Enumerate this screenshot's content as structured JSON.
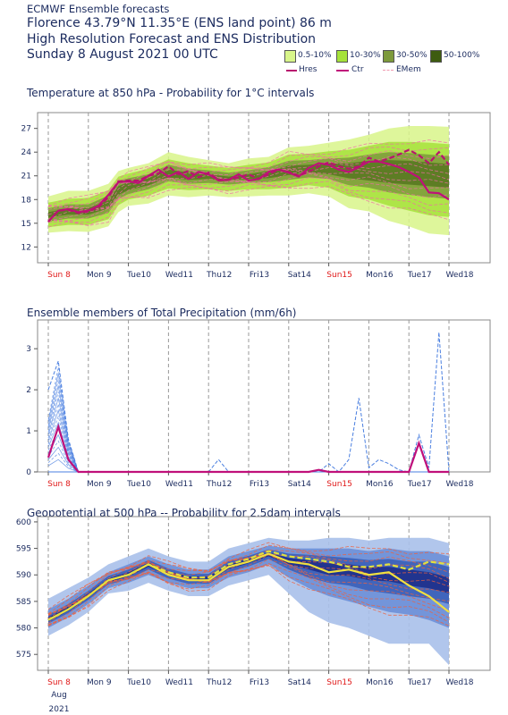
{
  "header": {
    "line1": "ECMWF Ensemble forecasts",
    "line2": "Florence 43.79°N 11.35°E (ENS land point) 86 m",
    "line3": "High Resolution Forecast and ENS Distribution",
    "line4": "Sunday  8 August 2021 00 UTC"
  },
  "legend": {
    "items": [
      {
        "label": "0.5-10%",
        "color": "#d8f58a"
      },
      {
        "label": "10-30%",
        "color": "#a6e23a"
      },
      {
        "label": "30-50%",
        "color": "#7d9a3c"
      },
      {
        "label": "50-100%",
        "color": "#3e5c10"
      }
    ],
    "lines": [
      {
        "label": "Hres",
        "color": "#b8146e",
        "style": "dashed"
      },
      {
        "label": "Ctr",
        "color": "#c0107a",
        "style": "solid"
      },
      {
        "label": "EMem",
        "color": "#f09ab0",
        "style": "dashed"
      }
    ]
  },
  "x_axis": {
    "ticks": [
      "Sun 8",
      "Mon 9",
      "Tue10",
      "Wed11",
      "Thu12",
      "Fri13",
      "Sat14",
      "Sun15",
      "Mon16",
      "Tue17",
      "Wed18"
    ],
    "red_ticks": [
      "Sun 8",
      "Sun15"
    ],
    "sublabel1": "Aug",
    "sublabel2": "2021"
  },
  "chart_data": [
    {
      "type": "area",
      "title": "Temperature at 850 hPa - Probability for 1°C intervals",
      "ylim": [
        10,
        29
      ],
      "yticks": [
        12,
        15,
        18,
        21,
        24,
        27
      ],
      "x_unit": "days from Sun 8 00 UTC",
      "series": [
        {
          "name": "Hres",
          "x": [
            0,
            0.25,
            0.5,
            0.75,
            1,
            1.25,
            1.5,
            1.75,
            2,
            2.25,
            2.5,
            2.75,
            3,
            3.25,
            3.5,
            3.75,
            4,
            4.25,
            4.5,
            4.75,
            5,
            5.25,
            5.5,
            5.75,
            6,
            6.25,
            6.5,
            6.75,
            7,
            7.25,
            7.5,
            7.75,
            8,
            8.25,
            8.5,
            8.75,
            9,
            9.25,
            9.5,
            9.75,
            10
          ],
          "values": [
            15.2,
            16.6,
            16.7,
            16.3,
            16.5,
            17.0,
            18.3,
            20.3,
            20.4,
            20.4,
            21.0,
            21.3,
            22.2,
            21.2,
            21.6,
            20.8,
            21.4,
            20.5,
            20.5,
            20.8,
            21.2,
            20.6,
            21.2,
            21.8,
            21.5,
            21.0,
            21.5,
            22.2,
            22.7,
            22.2,
            21.9,
            22.2,
            23.3,
            22.8,
            23.2,
            23.7,
            24.3,
            23.6,
            22.6,
            24.0,
            22.4
          ]
        },
        {
          "name": "Ctr",
          "x": [
            0,
            0.25,
            0.5,
            0.75,
            1,
            1.25,
            1.5,
            1.75,
            2,
            2.25,
            2.5,
            2.75,
            3,
            3.25,
            3.5,
            3.75,
            4,
            4.25,
            4.5,
            4.75,
            5,
            5.25,
            5.5,
            5.75,
            6,
            6.25,
            6.5,
            6.75,
            7,
            7.25,
            7.5,
            7.75,
            8,
            8.25,
            8.5,
            8.75,
            9,
            9.25,
            9.5,
            9.75,
            10
          ],
          "values": [
            15.2,
            16.6,
            16.8,
            16.4,
            16.6,
            17.2,
            18.6,
            20.2,
            20.3,
            20.1,
            21.0,
            21.8,
            20.9,
            21.5,
            20.6,
            21.5,
            21.2,
            20.4,
            20.5,
            21.2,
            20.4,
            20.6,
            21.5,
            21.8,
            21.4,
            20.9,
            22.0,
            22.6,
            22.4,
            21.8,
            21.5,
            22.1,
            22.8,
            22.8,
            22.5,
            22.1,
            21.5,
            20.8,
            18.9,
            18.8,
            18.0
          ]
        }
      ],
      "band_0_5_10": {
        "x": [
          0,
          0.5,
          1,
          1.5,
          1.75,
          2,
          2.5,
          3,
          3.5,
          4,
          4.5,
          5,
          5.5,
          6,
          6.5,
          7,
          7.5,
          8,
          8.5,
          9,
          9.5,
          10
        ],
        "upper": [
          18.4,
          19.1,
          19.1,
          20.0,
          21.6,
          22.0,
          22.6,
          24.0,
          23.4,
          23.0,
          22.6,
          23.2,
          23.4,
          24.6,
          24.8,
          25.2,
          25.6,
          26.2,
          27.0,
          27.3,
          27.3,
          27.2
        ],
        "lower": [
          13.8,
          14.0,
          13.9,
          14.6,
          16.4,
          17.2,
          17.5,
          18.5,
          18.3,
          18.5,
          18.3,
          18.4,
          18.5,
          18.5,
          18.8,
          18.4,
          16.9,
          16.5,
          15.3,
          14.6,
          13.7,
          13.5
        ]
      },
      "band_10_30": {
        "x": [
          0,
          0.5,
          1,
          1.5,
          1.75,
          2,
          2.5,
          3,
          3.5,
          4,
          4.5,
          5,
          5.5,
          6,
          6.5,
          7,
          7.5,
          8,
          8.5,
          9,
          9.5,
          10
        ],
        "upper": [
          17.6,
          18.1,
          18.2,
          19.2,
          20.9,
          21.3,
          21.9,
          23.1,
          22.6,
          22.3,
          22.0,
          22.4,
          22.7,
          23.7,
          23.8,
          24.1,
          24.3,
          24.8,
          25.3,
          25.3,
          25.2,
          25.0
        ],
        "lower": [
          14.5,
          14.8,
          14.8,
          15.5,
          17.3,
          18.0,
          18.5,
          19.4,
          19.2,
          19.3,
          19.1,
          19.3,
          19.3,
          19.5,
          19.8,
          19.5,
          18.4,
          18.0,
          17.2,
          16.6,
          16.0,
          15.8
        ]
      },
      "band_30_50": {
        "x": [
          0,
          0.5,
          1,
          1.5,
          1.75,
          2,
          2.5,
          3,
          3.5,
          4,
          4.5,
          5,
          5.5,
          6,
          6.5,
          7,
          7.5,
          8,
          8.5,
          9,
          9.5,
          10
        ],
        "upper": [
          16.9,
          17.4,
          17.4,
          18.5,
          20.3,
          20.7,
          21.2,
          22.4,
          21.9,
          21.7,
          21.4,
          21.7,
          22.1,
          22.9,
          23.0,
          23.2,
          23.3,
          23.7,
          24.0,
          23.9,
          23.7,
          23.5
        ],
        "lower": [
          15.2,
          15.6,
          15.6,
          16.3,
          18.1,
          18.7,
          19.3,
          20.3,
          20.0,
          20.1,
          19.9,
          20.1,
          20.2,
          20.5,
          20.8,
          20.6,
          19.8,
          19.5,
          18.9,
          18.6,
          18.3,
          18.1
        ]
      },
      "band_50_100": {
        "x": [
          0,
          0.5,
          1,
          1.5,
          1.75,
          2,
          2.5,
          3,
          3.5,
          4,
          4.5,
          5,
          5.5,
          6,
          6.5,
          7,
          7.5,
          8,
          8.5,
          9,
          9.5,
          10
        ],
        "upper": [
          16.4,
          16.9,
          16.9,
          17.9,
          19.7,
          20.2,
          20.7,
          21.8,
          21.4,
          21.2,
          20.9,
          21.2,
          21.6,
          22.3,
          22.4,
          22.6,
          22.6,
          22.9,
          23.0,
          22.9,
          22.7,
          22.5
        ],
        "lower": [
          15.7,
          16.1,
          16.1,
          16.9,
          18.6,
          19.2,
          19.8,
          20.8,
          20.5,
          20.6,
          20.4,
          20.6,
          20.7,
          21.1,
          21.4,
          21.2,
          20.7,
          20.4,
          20.1,
          19.9,
          19.7,
          19.5
        ]
      }
    },
    {
      "type": "line",
      "title": "Ensemble members of Total Precipitation (mm/6h)",
      "ylim": [
        0,
        3.7
      ],
      "yticks": [
        0,
        1,
        2,
        3
      ],
      "x_unit": "days from Sun 8 00 UTC",
      "series": [
        {
          "name": "Ctr",
          "x": [
            0,
            0.25,
            0.5,
            0.75,
            1,
            6.5,
            6.75,
            7,
            7.25,
            9,
            9.25,
            9.5,
            9.75,
            10
          ],
          "values": [
            0.35,
            1.1,
            0.3,
            0,
            0,
            0,
            0.05,
            0,
            0,
            0,
            0.7,
            0,
            0,
            0
          ]
        },
        {
          "name": "EMem",
          "x": [
            0,
            0.25,
            0.5,
            0.75,
            1,
            4,
            4.25,
            4.5,
            6.75,
            7,
            7.25,
            7.5,
            7.75,
            8,
            8.25,
            8.5,
            8.75,
            9,
            9.25,
            9.5,
            9.75,
            10
          ],
          "values": [
            2.0,
            2.7,
            0.8,
            0,
            0,
            0,
            0.3,
            0,
            0,
            0.2,
            0,
            0.3,
            1.8,
            0.1,
            0.3,
            0.2,
            0.05,
            0,
            0.9,
            0.1,
            3.4,
            0
          ]
        }
      ]
    },
    {
      "type": "area",
      "title": "Geopotential at 500 hPa -- Probability for 2.5dam intervals",
      "ylim": [
        572,
        601
      ],
      "yticks": [
        575,
        580,
        585,
        590,
        595,
        600
      ],
      "x_unit": "days from Sun 8 00 UTC",
      "series": [
        {
          "name": "Hres",
          "x": [
            0,
            0.5,
            1,
            1.5,
            2,
            2.5,
            3,
            3.5,
            4,
            4.5,
            5,
            5.5,
            6,
            6.5,
            7,
            7.5,
            8,
            8.5,
            9,
            9.5,
            10
          ],
          "values": [
            581.5,
            583.5,
            586.0,
            589.0,
            590.0,
            592.0,
            590.5,
            589.5,
            589.5,
            592.0,
            593.0,
            594.5,
            593.5,
            593.0,
            592.5,
            591.5,
            591.5,
            592.0,
            591.0,
            592.5,
            592.0
          ]
        },
        {
          "name": "Ctr",
          "x": [
            0,
            0.5,
            1,
            1.5,
            2,
            2.5,
            3,
            3.5,
            4,
            4.5,
            5,
            5.5,
            6,
            6.5,
            7,
            7.5,
            8,
            8.5,
            9,
            9.5,
            10
          ],
          "values": [
            581.5,
            583.5,
            586.0,
            589.0,
            590.0,
            592.0,
            590.0,
            589.0,
            589.0,
            591.5,
            592.5,
            594.0,
            592.5,
            592.0,
            590.5,
            591.0,
            590.0,
            590.5,
            588.0,
            586.0,
            583.0
          ]
        }
      ],
      "band_0_5_10": {
        "x": [
          0,
          0.5,
          1,
          1.5,
          2,
          2.5,
          3,
          3.5,
          4,
          4.5,
          5,
          5.5,
          6,
          6.5,
          7,
          7.5,
          8,
          8.5,
          9,
          9.5,
          10
        ],
        "upper": [
          585.5,
          587.5,
          589.5,
          592.0,
          593.5,
          595.0,
          593.5,
          592.5,
          592.5,
          595.0,
          596.0,
          597.0,
          596.5,
          596.5,
          597.0,
          597.0,
          596.5,
          597.0,
          597.0,
          597.0,
          596.0
        ],
        "lower": [
          578.5,
          580.5,
          583.0,
          586.5,
          587.0,
          588.5,
          587.0,
          586.0,
          586.0,
          588.0,
          589.0,
          590.0,
          586.5,
          583.0,
          581.0,
          580.0,
          578.5,
          577.0,
          577.0,
          577.0,
          573.0
        ]
      },
      "band_10_30": {
        "x": [
          0,
          0.5,
          1,
          1.5,
          2,
          2.5,
          3,
          3.5,
          4,
          4.5,
          5,
          5.5,
          6,
          6.5,
          7,
          7.5,
          8,
          8.5,
          9,
          9.5,
          10
        ],
        "upper": [
          583.5,
          585.5,
          588.0,
          590.5,
          592.0,
          593.5,
          592.0,
          591.0,
          591.0,
          593.5,
          594.5,
          595.5,
          595.0,
          595.0,
          595.0,
          595.0,
          594.5,
          595.0,
          594.5,
          594.5,
          593.5
        ],
        "lower": [
          580.0,
          582.0,
          584.5,
          587.5,
          588.5,
          590.0,
          588.5,
          587.5,
          587.5,
          589.5,
          590.5,
          592.0,
          589.5,
          587.5,
          586.0,
          585.0,
          584.0,
          583.0,
          582.5,
          581.5,
          580.0
        ]
      },
      "band_30_50": {
        "x": [
          0,
          0.5,
          1,
          1.5,
          2,
          2.5,
          3,
          3.5,
          4,
          4.5,
          5,
          5.5,
          6,
          6.5,
          7,
          7.5,
          8,
          8.5,
          9,
          9.5,
          10
        ],
        "upper": [
          582.5,
          584.5,
          587.0,
          589.8,
          591.0,
          592.8,
          591.2,
          590.2,
          590.2,
          592.6,
          593.6,
          594.8,
          594.0,
          593.8,
          593.5,
          593.2,
          592.8,
          593.0,
          592.5,
          592.5,
          591.5
        ],
        "lower": [
          580.8,
          582.8,
          585.3,
          588.2,
          589.2,
          591.0,
          589.3,
          588.3,
          588.3,
          590.5,
          591.6,
          593.0,
          591.0,
          589.5,
          588.5,
          588.0,
          587.0,
          586.5,
          586.0,
          585.5,
          584.5
        ]
      },
      "band_50_100": {
        "x": [
          0,
          0.5,
          1,
          1.5,
          2,
          2.5,
          3,
          3.5,
          4,
          4.5,
          5,
          5.5,
          6,
          6.5,
          7,
          7.5,
          8,
          8.5,
          9,
          9.5,
          10
        ],
        "upper": [
          582.0,
          584.0,
          586.5,
          589.3,
          590.5,
          592.3,
          590.7,
          589.7,
          589.7,
          592.0,
          593.0,
          594.2,
          593.2,
          592.8,
          592.2,
          592.0,
          591.5,
          591.5,
          591.0,
          590.5,
          589.5
        ],
        "lower": [
          581.2,
          583.2,
          585.7,
          588.6,
          589.7,
          591.5,
          589.9,
          588.9,
          588.9,
          591.1,
          592.2,
          593.5,
          592.0,
          591.0,
          590.0,
          589.8,
          589.0,
          588.8,
          588.0,
          587.5,
          586.5
        ]
      }
    }
  ],
  "colors": {
    "temp_band_1": "#d8f58a",
    "temp_band_2": "#a6e23a",
    "temp_band_3": "#7d9a3c",
    "temp_band_4": "#3e5c10",
    "temp_member": "#f06aa6",
    "hres": "#b8146e",
    "ctr": "#c0107a",
    "precip_member": "#4a7fe0",
    "precip_ctr": "#c0107a",
    "geo_band_1": "#a9c0ea",
    "geo_band_2": "#6d8fd8",
    "geo_band_3": "#3b5fb8",
    "geo_band_4": "#1e2f8a",
    "geo_member": "#f0603c",
    "geo_hres": "#e0e040",
    "geo_ctr": "#f0e040",
    "axis_text": "#1a2a5e",
    "red_tick": "#e01818"
  }
}
